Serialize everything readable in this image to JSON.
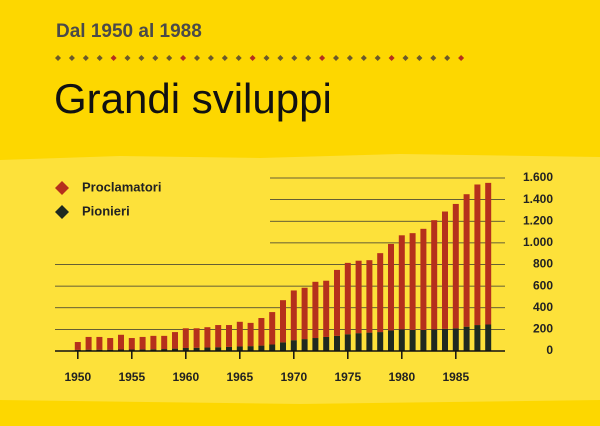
{
  "chart_data": {
    "type": "stacked_bar",
    "subtitle": "Dal 1950 al 1988",
    "title": "Grandi sviluppi",
    "x": [
      1950,
      1951,
      1952,
      1953,
      1954,
      1955,
      1956,
      1957,
      1958,
      1959,
      1960,
      1961,
      1962,
      1963,
      1964,
      1965,
      1966,
      1967,
      1968,
      1969,
      1970,
      1971,
      1972,
      1973,
      1974,
      1975,
      1976,
      1977,
      1978,
      1979,
      1980,
      1981,
      1982,
      1983,
      1984,
      1985,
      1986,
      1987,
      1988
    ],
    "series": [
      {
        "name": "Pionieri",
        "color": "#1e2a20",
        "values": [
          10,
          12,
          12,
          12,
          14,
          14,
          15,
          16,
          18,
          22,
          28,
          30,
          32,
          35,
          38,
          42,
          45,
          50,
          60,
          80,
          100,
          110,
          120,
          130,
          140,
          155,
          165,
          170,
          175,
          190,
          200,
          195,
          195,
          200,
          205,
          210,
          225,
          240,
          245
        ]
      },
      {
        "name": "Proclamatori",
        "color": "#b5301c",
        "values": [
          73,
          118,
          118,
          108,
          136,
          106,
          115,
          124,
          122,
          153,
          182,
          180,
          188,
          205,
          202,
          228,
          215,
          255,
          300,
          390,
          460,
          475,
          520,
          520,
          610,
          660,
          670,
          670,
          730,
          800,
          870,
          895,
          935,
          1010,
          1085,
          1150,
          1225,
          1300,
          1310
        ]
      }
    ],
    "xlim": [
      1949,
      1989
    ],
    "xticks": [
      1950,
      1955,
      1960,
      1965,
      1970,
      1975,
      1980,
      1985
    ],
    "ylim": [
      0,
      1600
    ],
    "yticks": [
      0,
      200,
      400,
      600,
      800,
      {
        "value": 1000,
        "label": "1.000"
      },
      {
        "value": 1200,
        "label": "1.200"
      },
      {
        "value": 1400,
        "label": "1.400"
      },
      {
        "value": 1600,
        "label": "1.600"
      }
    ],
    "grid": true
  }
}
